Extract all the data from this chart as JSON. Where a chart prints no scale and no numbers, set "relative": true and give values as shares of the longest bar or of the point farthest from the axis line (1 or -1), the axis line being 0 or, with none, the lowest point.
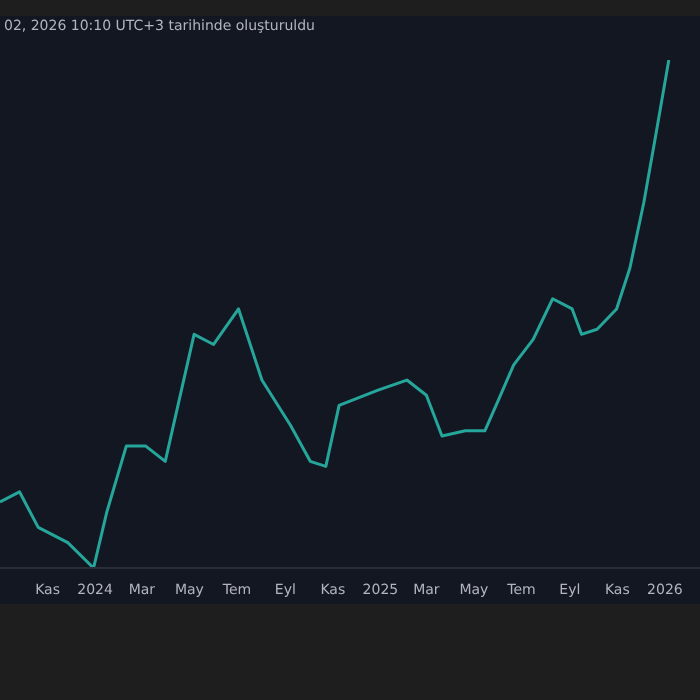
{
  "chart_data": {
    "type": "line",
    "title": "02, 2026 10:10 UTC+3 tarihinde oluşturuldu",
    "relative": true,
    "x": [
      "2023-09-01",
      "2023-09-26",
      "2023-10-20",
      "2023-11-27",
      "2023-12-30",
      "2024-01-16",
      "2024-02-10",
      "2024-03-06",
      "2024-03-31",
      "2024-05-07",
      "2024-06-01",
      "2024-07-03",
      "2024-08-02",
      "2024-09-08",
      "2024-10-03",
      "2024-10-23",
      "2024-11-09",
      "2024-12-29",
      "2025-02-04",
      "2025-03-01",
      "2025-03-21",
      "2025-04-20",
      "2025-05-15",
      "2025-06-04",
      "2025-06-21",
      "2025-07-16",
      "2025-08-10",
      "2025-09-04",
      "2025-09-16",
      "2025-10-06",
      "2025-10-31",
      "2025-11-17",
      "2025-12-05",
      "2025-12-20",
      "2026-01-06"
    ],
    "series": [
      {
        "color": "#26a69a",
        "values": [
          0.13,
          0.15,
          0.08,
          0.05,
          0,
          0.11,
          0.24,
          0.24,
          0.21,
          0.46,
          0.44,
          0.51,
          0.37,
          0.28,
          0.21,
          0.2,
          0.32,
          0.35,
          0.37,
          0.34,
          0.26,
          0.27,
          0.27,
          0.34,
          0.4,
          0.45,
          0.53,
          0.51,
          0.46,
          0.47,
          0.51,
          0.59,
          0.72,
          0.85,
          1
        ]
      }
    ],
    "xlim": [
      "2023-09-01",
      "2026-02-15"
    ],
    "xticks": [
      {
        "value": "2023-11-01",
        "label": "Kas"
      },
      {
        "value": "2024-01-01",
        "label": "2024"
      },
      {
        "value": "2024-03-01",
        "label": "Mar"
      },
      {
        "value": "2024-05-01",
        "label": "May"
      },
      {
        "value": "2024-07-01",
        "label": "Tem"
      },
      {
        "value": "2024-09-01",
        "label": "Eyl"
      },
      {
        "value": "2024-11-01",
        "label": "Kas"
      },
      {
        "value": "2025-01-01",
        "label": "2025"
      },
      {
        "value": "2025-03-01",
        "label": "Mar"
      },
      {
        "value": "2025-05-01",
        "label": "May"
      },
      {
        "value": "2025-07-01",
        "label": "Tem"
      },
      {
        "value": "2025-09-01",
        "label": "Eyl"
      },
      {
        "value": "2025-11-01",
        "label": "Kas"
      },
      {
        "value": "2026-01-01",
        "label": "2026"
      }
    ],
    "marker": "none",
    "line_style": "solid"
  }
}
